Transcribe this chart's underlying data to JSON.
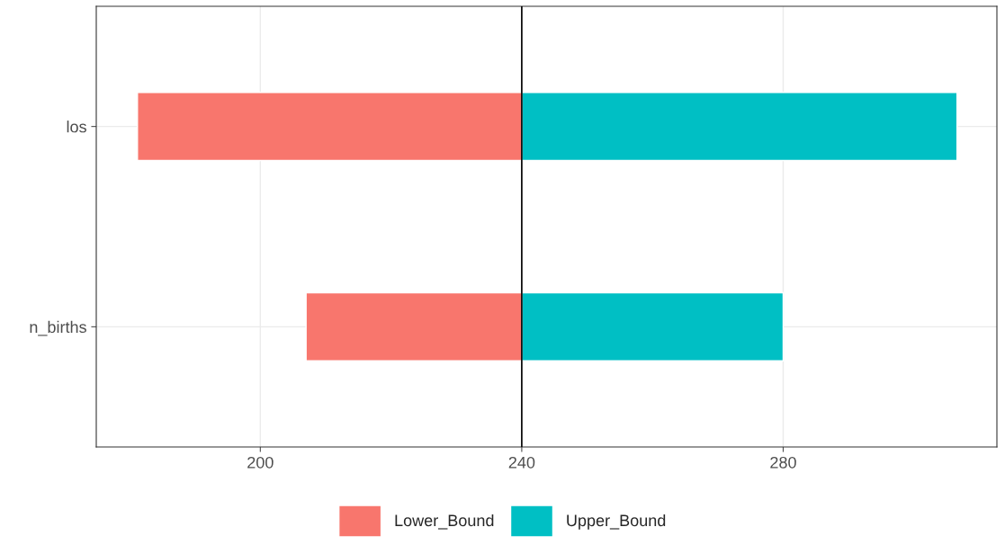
{
  "chart_data": {
    "type": "bar",
    "orientation": "horizontal",
    "categories": [
      "los",
      "n_births"
    ],
    "series": [
      {
        "name": "Lower_Bound",
        "color": "#f8766d",
        "base": [
          181.2,
          207
        ],
        "values": [
          58.8,
          33
        ]
      },
      {
        "name": "Upper_Bound",
        "color": "#00bfc4",
        "base": [
          240,
          240
        ],
        "values": [
          66.6,
          40
        ]
      }
    ],
    "xlim": [
      174.9,
      312.7
    ],
    "xticks": [
      200,
      240,
      280
    ],
    "ref_lines": [
      {
        "axis": "x",
        "value": 240,
        "color": "#000000"
      }
    ],
    "grid": true,
    "legend": "bottom"
  }
}
